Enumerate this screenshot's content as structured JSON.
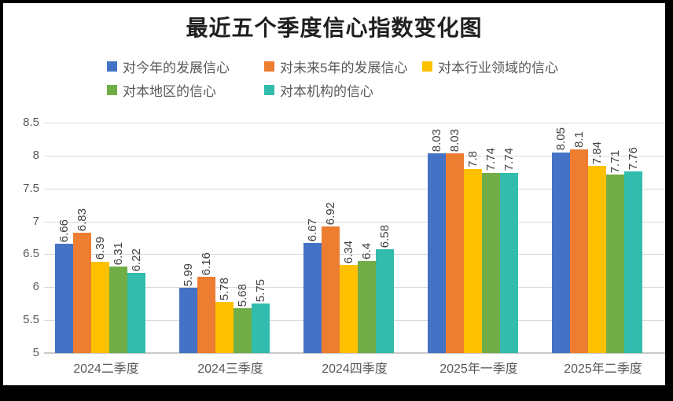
{
  "chart_data": {
    "type": "bar",
    "title": "最近五个季度信心指数变化图",
    "categories": [
      "2024二季度",
      "2024三季度",
      "2024四季度",
      "2025年一季度",
      "2025年二季度"
    ],
    "series": [
      {
        "name": "对今年的发展信心",
        "color": "#4472c4",
        "values": [
          6.66,
          5.99,
          6.67,
          8.03,
          8.05
        ]
      },
      {
        "name": "对未来5年的发展信心",
        "color": "#ed7d31",
        "values": [
          6.83,
          6.16,
          6.92,
          8.03,
          8.1
        ]
      },
      {
        "name": "对本行业领域的信心",
        "color": "#ffc000",
        "values": [
          6.39,
          5.78,
          6.34,
          7.8,
          7.84
        ]
      },
      {
        "name": "对本地区的信心",
        "color": "#70ad47",
        "values": [
          6.31,
          5.68,
          6.4,
          7.74,
          7.71
        ]
      },
      {
        "name": "对本机构的信心",
        "color": "#31bcad",
        "values": [
          6.22,
          5.75,
          6.58,
          7.74,
          7.76
        ]
      }
    ],
    "ylim": [
      5,
      8.5
    ],
    "yticks": [
      8.5,
      8,
      7.5,
      7,
      6.5,
      6,
      5.5,
      5
    ],
    "grid": true,
    "legend_position": "top",
    "data_labels": "rotated-vertical",
    "colors": {
      "grid": "#dadada",
      "axis_text": "#595959",
      "data_label_text": "#404040",
      "title_text": "#1f1f1f",
      "frame": "#000000"
    }
  }
}
